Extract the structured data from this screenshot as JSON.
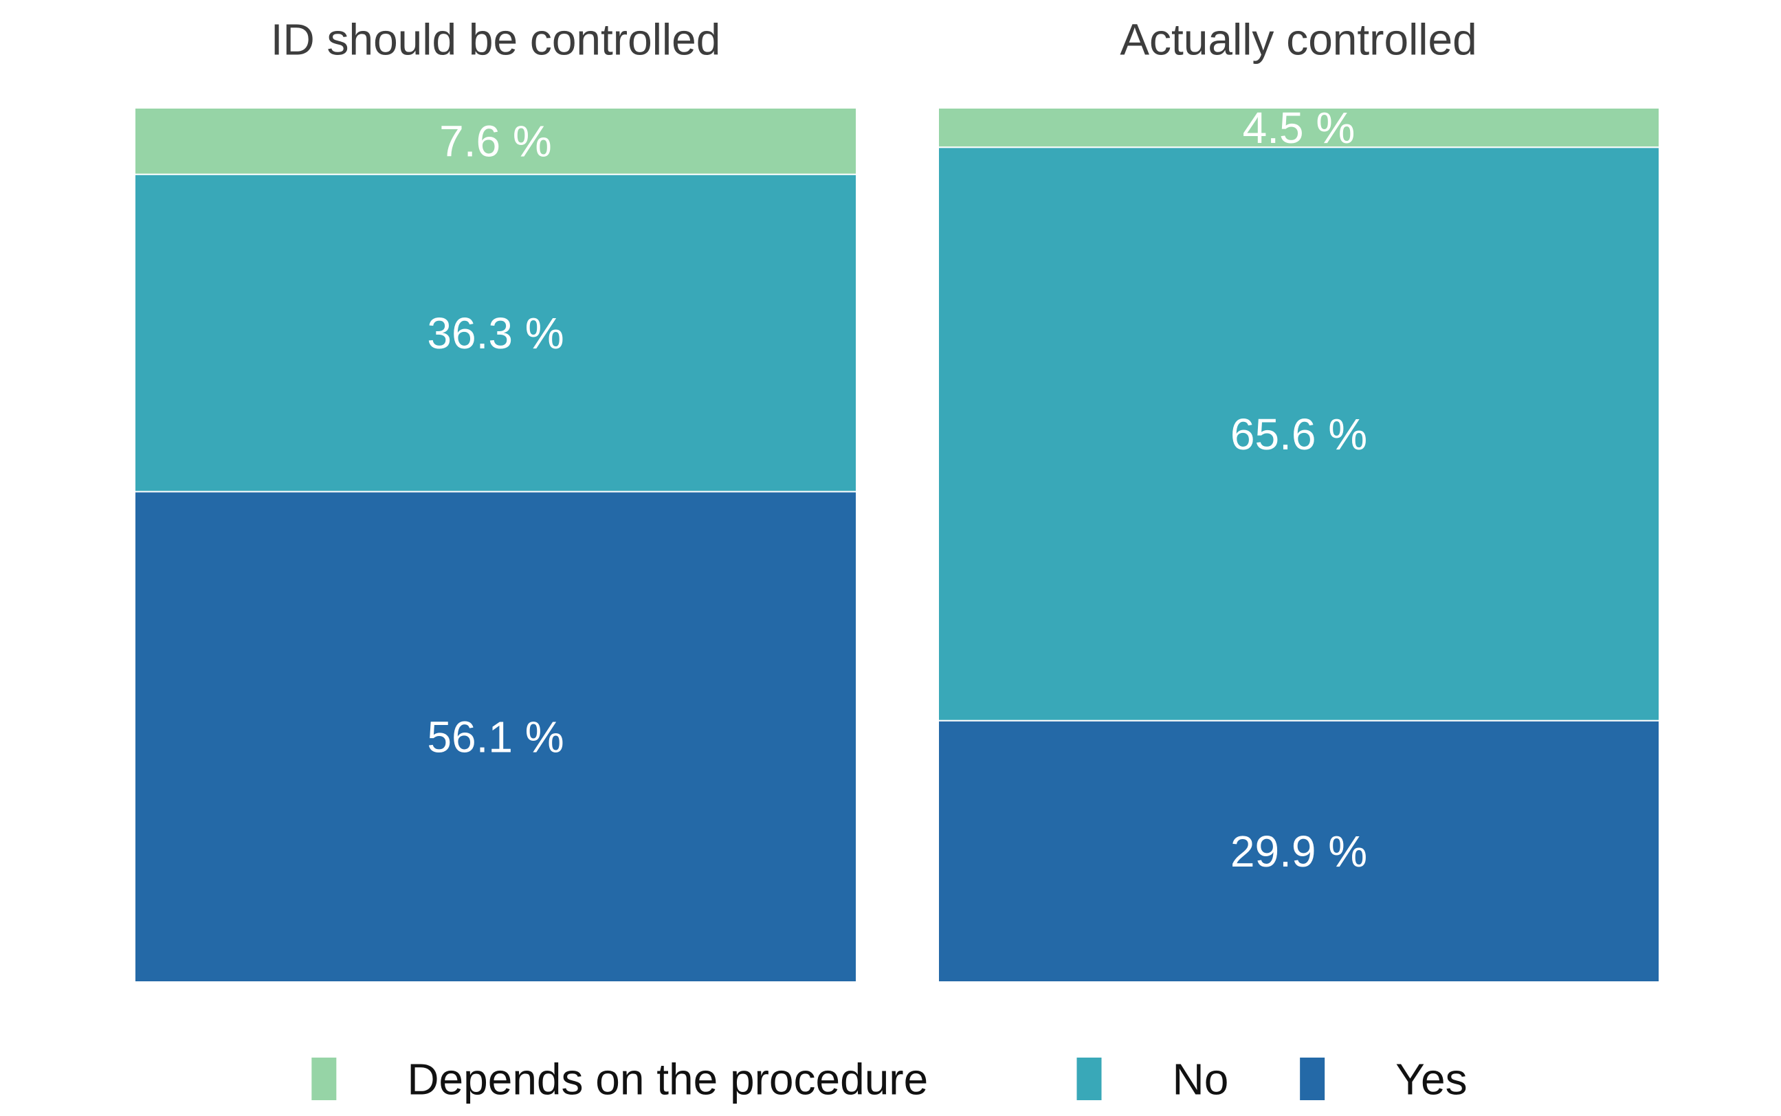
{
  "chart_data": {
    "type": "bar",
    "stacked": true,
    "percent_scale": [
      0,
      100
    ],
    "panels": [
      {
        "title": "ID should be controlled",
        "segments": [
          {
            "series": "Yes",
            "value": 56.1,
            "label": "56.1 %"
          },
          {
            "series": "No",
            "value": 36.3,
            "label": "36.3 %"
          },
          {
            "series": "Depends on the procedure",
            "value": 7.6,
            "label": "7.6 %"
          }
        ]
      },
      {
        "title": "Actually controlled",
        "segments": [
          {
            "series": "Yes",
            "value": 29.9,
            "label": "29.9 %"
          },
          {
            "series": "No",
            "value": 65.6,
            "label": "65.6 %"
          },
          {
            "series": "Depends on the procedure",
            "value": 4.5,
            "label": "4.5 %"
          }
        ]
      }
    ],
    "legend": {
      "placement": "bottom",
      "items": [
        {
          "name": "Depends on the procedure",
          "color": "#96d4a6"
        },
        {
          "name": "No",
          "color": "#39a8b8"
        },
        {
          "name": "Yes",
          "color": "#2469a7"
        }
      ]
    },
    "colors": {
      "Depends on the procedure": "#96d4a6",
      "No": "#39a8b8",
      "Yes": "#2469a7"
    },
    "grid": false,
    "axes_visible": false
  }
}
